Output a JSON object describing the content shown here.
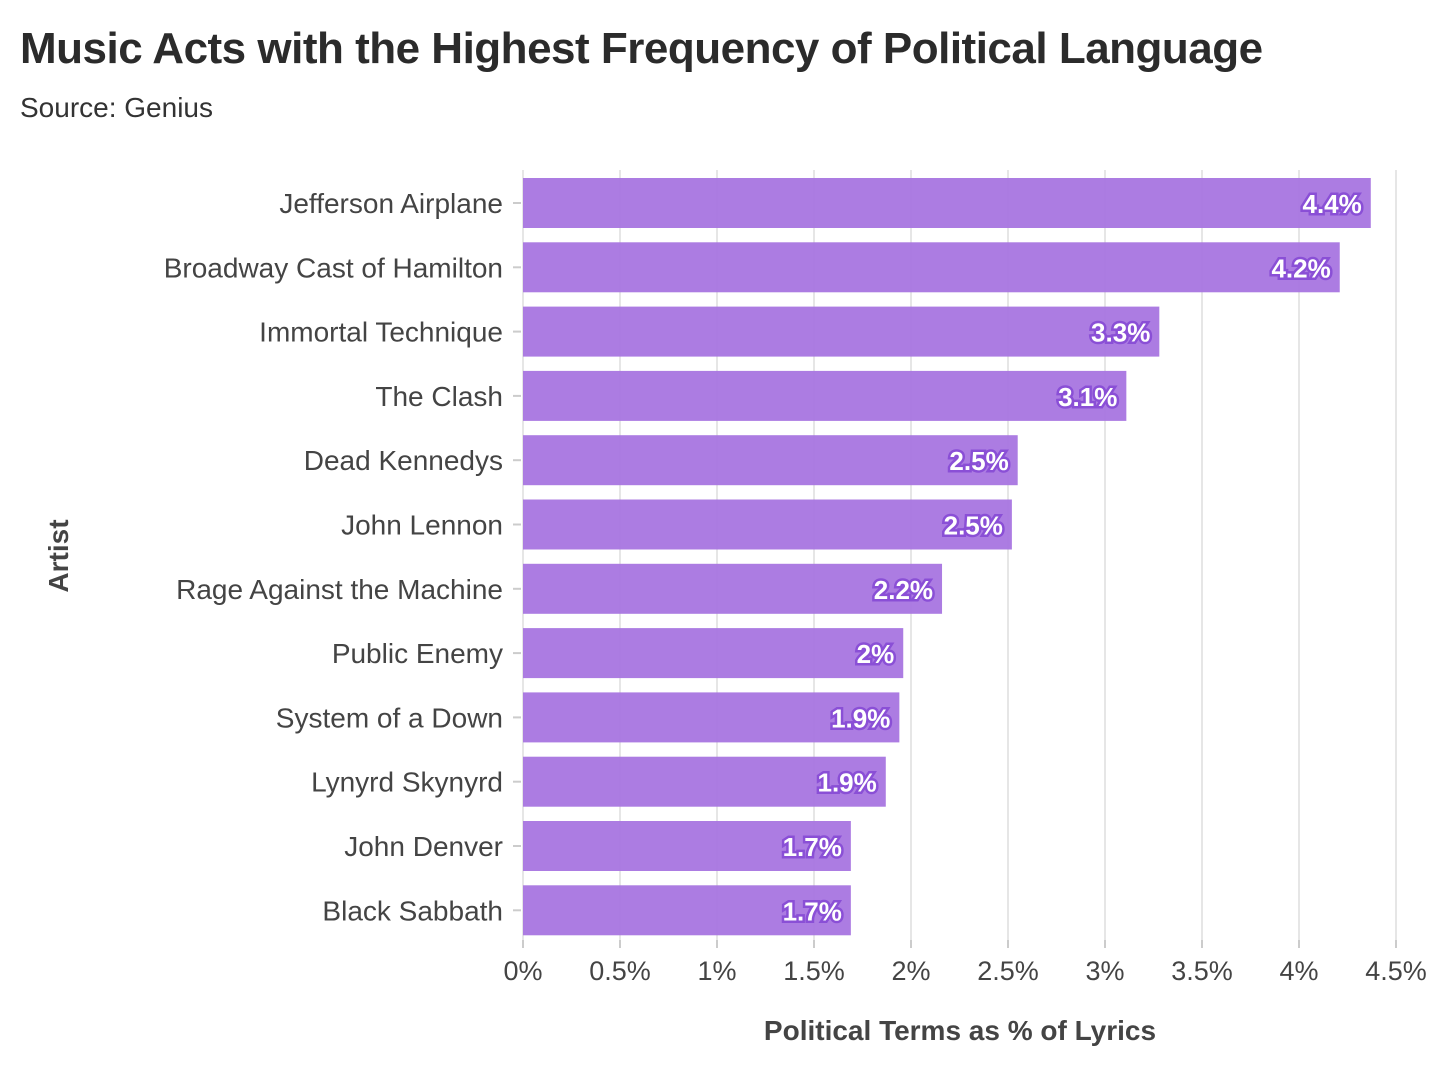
{
  "chart_data": {
    "type": "bar",
    "orientation": "horizontal",
    "title": "Music Acts with the Highest Frequency of Political Language",
    "subtitle": "Source: Genius",
    "xlabel": "Political Terms as % of Lyrics",
    "ylabel": "Artist",
    "xlim": [
      0,
      4.5
    ],
    "xticks": [
      0,
      0.5,
      1,
      1.5,
      2,
      2.5,
      3,
      3.5,
      4,
      4.5
    ],
    "xtick_labels": [
      "0%",
      "0.5%",
      "1%",
      "1.5%",
      "2%",
      "2.5%",
      "3%",
      "3.5%",
      "4%",
      "4.5%"
    ],
    "grid": true,
    "categories": [
      "Jefferson Airplane",
      "Broadway Cast of Hamilton",
      "Immortal Technique",
      "The Clash",
      "Dead Kennedys",
      "John Lennon",
      "Rage Against the Machine",
      "Public Enemy",
      "System of a Down",
      "Lynyrd Skynyrd",
      "John Denver",
      "Black Sabbath"
    ],
    "values": [
      4.37,
      4.21,
      3.28,
      3.11,
      2.55,
      2.52,
      2.16,
      1.96,
      1.94,
      1.87,
      1.69,
      1.69
    ],
    "data_labels": [
      "4.4%",
      "4.2%",
      "3.3%",
      "3.1%",
      "2.5%",
      "2.5%",
      "2.2%",
      "2%",
      "1.9%",
      "1.9%",
      "1.7%",
      "1.7%"
    ],
    "colors": {
      "bar": "#a875e0",
      "label_stroke": "#8a4fd6",
      "grid": "#e6e6e6"
    }
  }
}
